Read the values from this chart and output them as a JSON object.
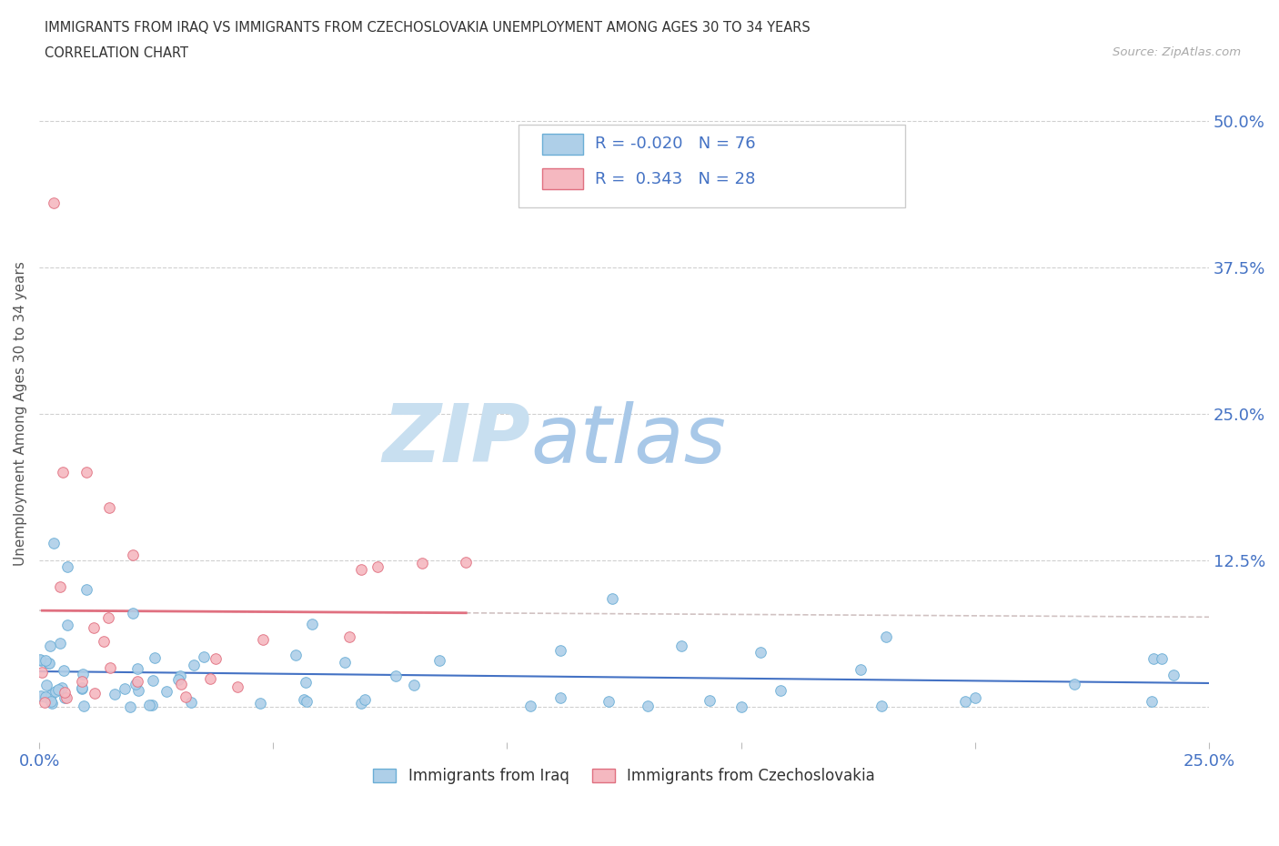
{
  "title_line1": "IMMIGRANTS FROM IRAQ VS IMMIGRANTS FROM CZECHOSLOVAKIA UNEMPLOYMENT AMONG AGES 30 TO 34 YEARS",
  "title_line2": "CORRELATION CHART",
  "source_text": "Source: ZipAtlas.com",
  "ylabel": "Unemployment Among Ages 30 to 34 years",
  "xlim": [
    0.0,
    0.25
  ],
  "ylim": [
    -0.03,
    0.53
  ],
  "xtick_vals": [
    0.0,
    0.05,
    0.1,
    0.15,
    0.2,
    0.25
  ],
  "xtick_labels": [
    "0.0%",
    "",
    "",
    "",
    "",
    "25.0%"
  ],
  "ytick_vals": [
    0.0,
    0.125,
    0.25,
    0.375,
    0.5
  ],
  "ytick_labels": [
    "",
    "12.5%",
    "25.0%",
    "37.5%",
    "50.0%"
  ],
  "iraq_R": -0.02,
  "iraq_N": 76,
  "czech_R": 0.343,
  "czech_N": 28,
  "iraq_color": "#aecfe8",
  "iraq_edge_color": "#6baed6",
  "czech_color": "#f5b8c0",
  "czech_edge_color": "#e07080",
  "iraq_line_color": "#4472c4",
  "czech_line_color": "#e07080",
  "watermark_zip_color": "#c8dff0",
  "watermark_atlas_color": "#a8c8e8",
  "background_color": "#ffffff",
  "grid_color": "#d0d0d0",
  "legend_edge_color": "#cccccc"
}
